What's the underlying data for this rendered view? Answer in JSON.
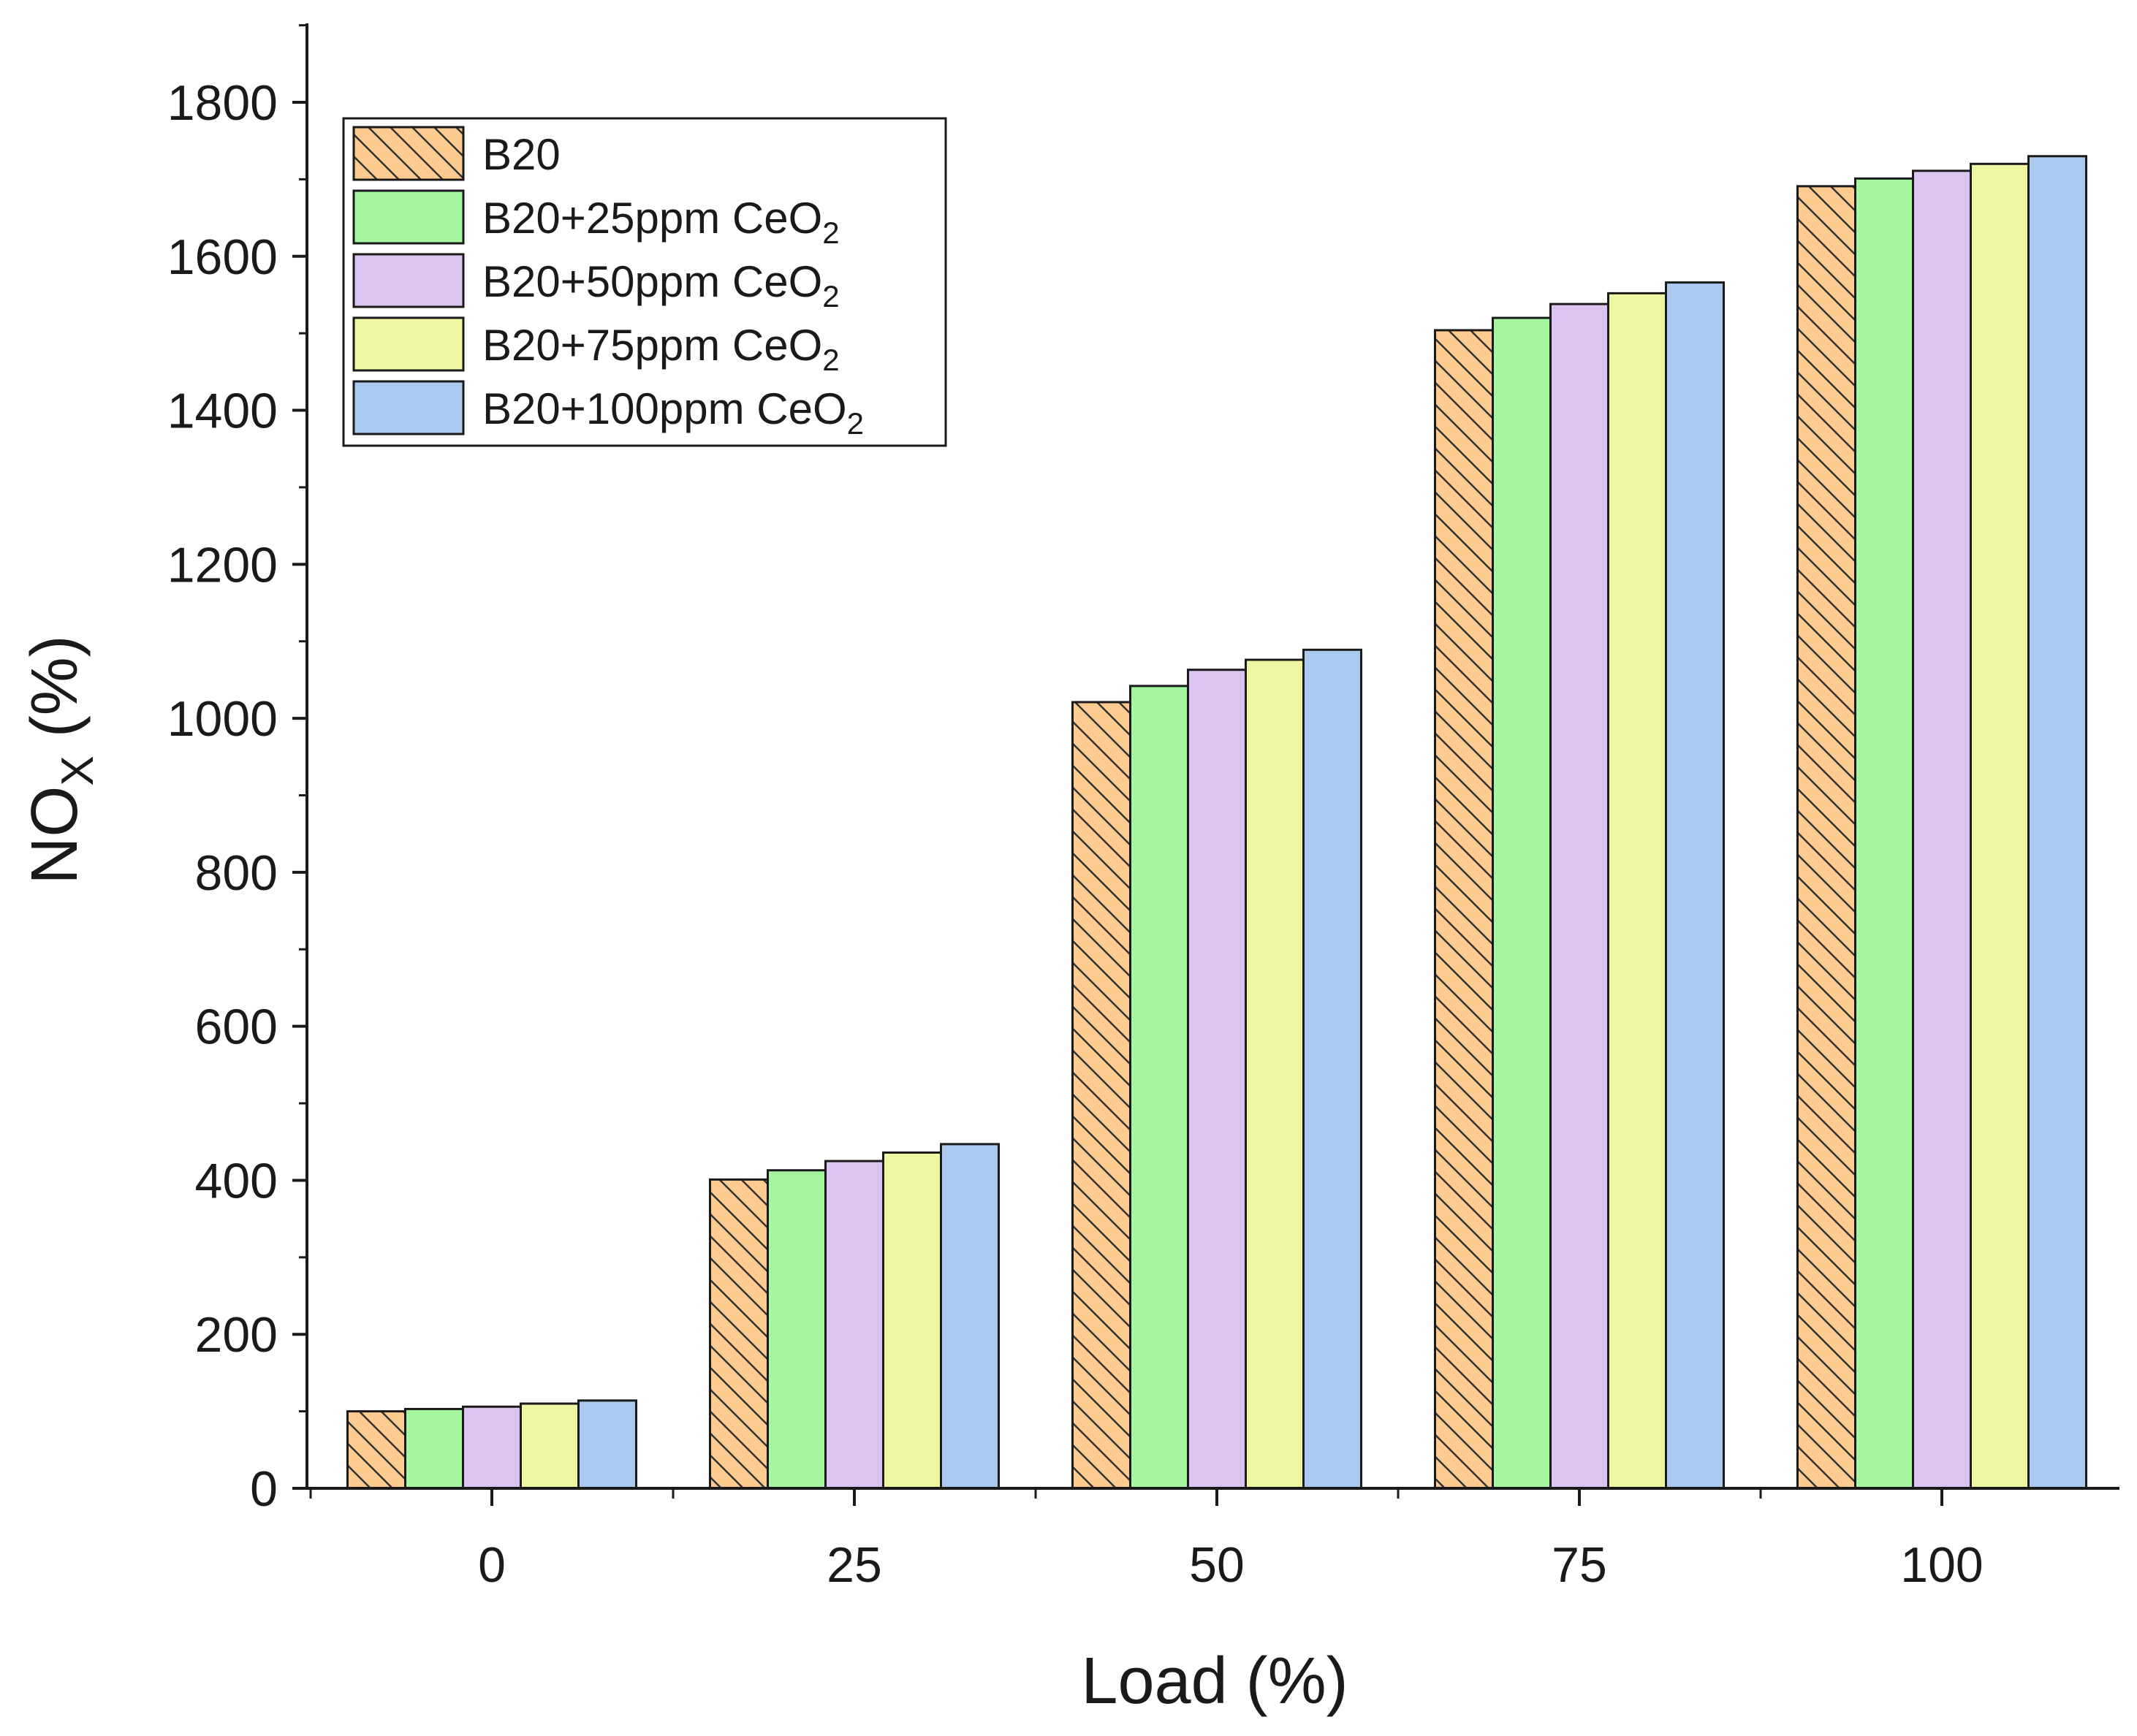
{
  "chart_data": {
    "type": "bar",
    "title": "",
    "xlabel": "Load (%)",
    "ylabel": {
      "main": "NO",
      "sub": "X",
      "unit": " (%)"
    },
    "categories": [
      "0",
      "25",
      "50",
      "75",
      "100"
    ],
    "ylim": [
      0,
      1900
    ],
    "yticks": [
      "0",
      "200",
      "400",
      "600",
      "800",
      "1000",
      "1200",
      "1400",
      "1600",
      "1800"
    ],
    "legend_position": "top-left",
    "series": [
      {
        "name": "B20",
        "name_sub": "",
        "color": "#fdca90",
        "hatch": true,
        "values": [
          100,
          401,
          1021,
          1504,
          1691
        ]
      },
      {
        "name": "B20+25ppm CeO",
        "name_sub": "2",
        "color": "#a5f5a1",
        "hatch": false,
        "values": [
          103,
          413,
          1042,
          1520,
          1701
        ]
      },
      {
        "name": "B20+50ppm CeO",
        "name_sub": "2",
        "color": "#dcc4f0",
        "hatch": false,
        "values": [
          106,
          425,
          1063,
          1538,
          1711
        ]
      },
      {
        "name": "B20+75ppm CeO",
        "name_sub": "2",
        "color": "#f0f7a3",
        "hatch": false,
        "values": [
          110,
          436,
          1076,
          1552,
          1720
        ]
      },
      {
        "name": "B20+100ppm CeO",
        "name_sub": "2",
        "color": "#a9c9ee",
        "hatch": false,
        "values": [
          114,
          447,
          1089,
          1566,
          1730
        ]
      }
    ]
  }
}
